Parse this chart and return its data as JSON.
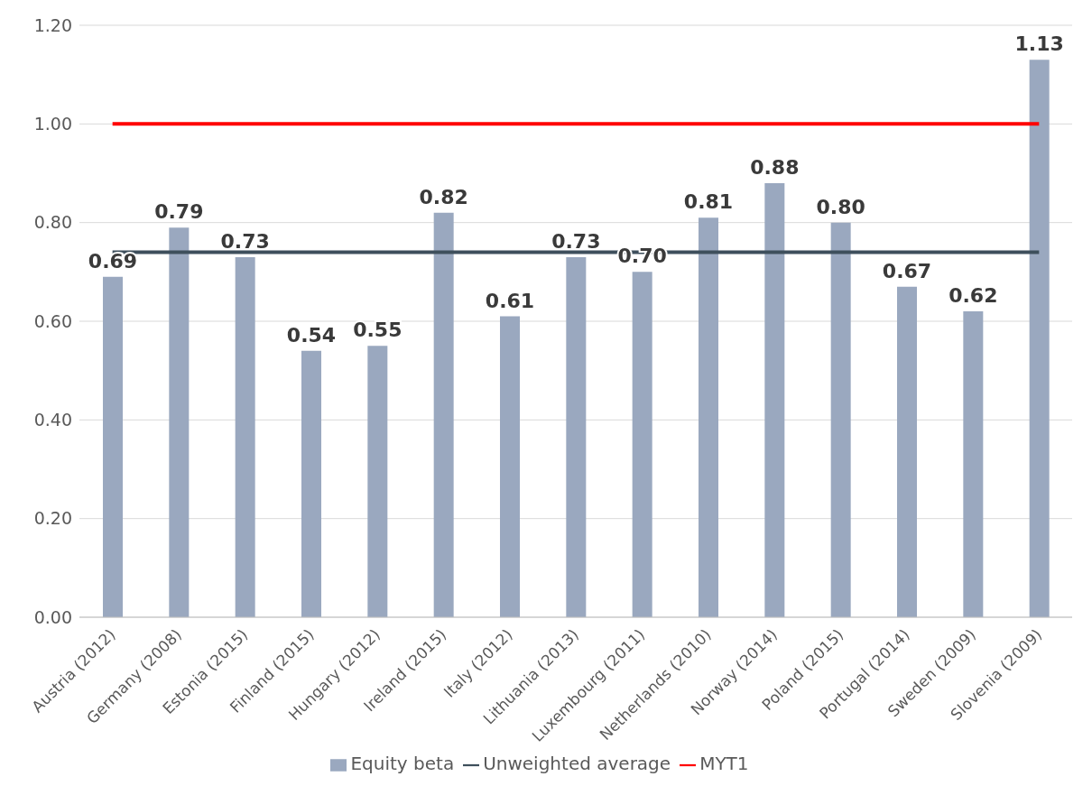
{
  "chart_data": {
    "type": "bar",
    "categories": [
      "Austria (2012)",
      "Germany (2008)",
      "Estonia (2015)",
      "Finland (2015)",
      "Hungary (2012)",
      "Ireland (2015)",
      "Italy (2012)",
      "Lithuania (2013)",
      "Luxembourg (2011)",
      "Netherlands (2010)",
      "Norway (2014)",
      "Poland (2015)",
      "Portugal (2014)",
      "Sweden (2009)",
      "Slovenia (2009)"
    ],
    "series": [
      {
        "name": "Equity beta",
        "color": "#9aa8bf",
        "values": [
          0.69,
          0.79,
          0.73,
          0.54,
          0.55,
          0.82,
          0.61,
          0.73,
          0.7,
          0.81,
          0.88,
          0.8,
          0.67,
          0.62,
          1.13
        ],
        "value_labels": [
          "0.69",
          "0.79",
          "0.73",
          "0.54",
          "0.55",
          "0.82",
          "0.61",
          "0.73",
          "0.70",
          "0.81",
          "0.88",
          "0.80",
          "0.67",
          "0.62",
          "1.13"
        ]
      },
      {
        "name": "Unweighted average",
        "type": "line",
        "color": "#3e4f5c",
        "values": [
          0.74,
          0.74,
          0.74,
          0.74,
          0.74,
          0.74,
          0.74,
          0.74,
          0.74,
          0.74,
          0.74,
          0.74,
          0.74,
          0.74,
          0.74
        ]
      },
      {
        "name": "MYT1",
        "type": "line",
        "color": "#ff0000",
        "values": [
          1.0,
          1.0,
          1.0,
          1.0,
          1.0,
          1.0,
          1.0,
          1.0,
          1.0,
          1.0,
          1.0,
          1.0,
          1.0,
          1.0,
          1.0
        ]
      }
    ],
    "ylim": [
      0,
      1.2
    ],
    "yticks": [
      {
        "value": 0,
        "label": "0.00"
      },
      {
        "value": 0.2,
        "label": "0.20"
      },
      {
        "value": 0.4,
        "label": "0.40"
      },
      {
        "value": 0.6,
        "label": "0.60"
      },
      {
        "value": 0.8,
        "label": "0.80"
      },
      {
        "value": 1.0,
        "label": "1.00"
      },
      {
        "value": 1.2,
        "label": "1.20"
      }
    ],
    "grid": "y",
    "legend": "bottom",
    "marker": "none",
    "line_style": "solid"
  }
}
